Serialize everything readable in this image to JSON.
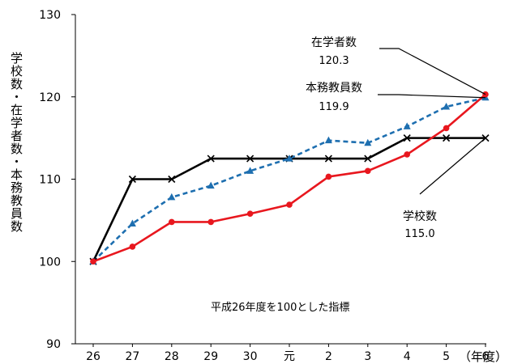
{
  "chart_data": {
    "type": "line",
    "title": "",
    "xlabel": "（年度）",
    "ylabel": "学校数・在学者数・本務教員数",
    "categories": [
      "26",
      "27",
      "28",
      "29",
      "30",
      "元",
      "2",
      "3",
      "4",
      "5",
      "6"
    ],
    "ylim": [
      90,
      130
    ],
    "yticks": [
      90,
      100,
      110,
      120,
      130
    ],
    "grid": false,
    "series": [
      {
        "name": "学校数",
        "value_label": "115.0",
        "color": "#000000",
        "style": "solid",
        "marker": "x",
        "values": [
          100,
          110,
          110,
          112.5,
          112.5,
          112.5,
          112.5,
          112.5,
          115,
          115,
          115
        ]
      },
      {
        "name": "在学者数",
        "value_label": "120.3",
        "color": "#e8171e",
        "style": "solid",
        "marker": "circle",
        "values": [
          100,
          101.8,
          104.8,
          104.8,
          105.8,
          106.9,
          110.3,
          111,
          113,
          116.2,
          120.3
        ]
      },
      {
        "name": "本務教員数",
        "value_label": "119.9",
        "color": "#1e6fb0",
        "style": "dashed",
        "marker": "triangle",
        "values": [
          100,
          104.6,
          107.8,
          109.2,
          111,
          112.5,
          114.7,
          114.4,
          116.4,
          118.8,
          119.9
        ]
      }
    ],
    "annotations": [
      "平成26年度を100とした指標"
    ]
  }
}
